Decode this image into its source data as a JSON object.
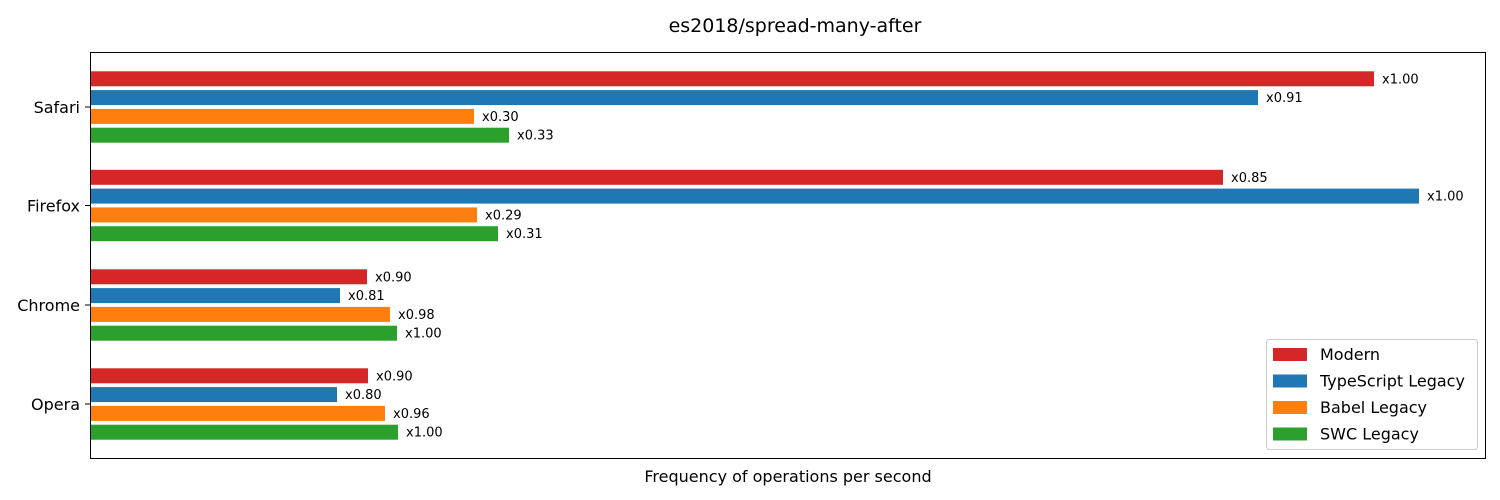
{
  "chart_data": {
    "type": "bar",
    "orientation": "horizontal",
    "title": "es2018/spread-many-after",
    "xlabel": "Frequency of operations per second",
    "ylabel": "",
    "categories": [
      "Safari",
      "Firefox",
      "Chrome",
      "Opera"
    ],
    "series": [
      {
        "name": "Modern",
        "color": "#d62728",
        "values": [
          1.0,
          0.85,
          0.9,
          0.9
        ],
        "labels": [
          "x1.00",
          "x0.85",
          "x0.90",
          "x0.90"
        ]
      },
      {
        "name": "TypeScript Legacy",
        "color": "#1f77b4",
        "values": [
          0.91,
          1.0,
          0.81,
          0.8
        ],
        "labels": [
          "x0.91",
          "x1.00",
          "x0.81",
          "x0.80"
        ]
      },
      {
        "name": "Babel Legacy",
        "color": "#ff7f0e",
        "values": [
          0.3,
          0.29,
          0.98,
          0.96
        ],
        "labels": [
          "x0.30",
          "x0.29",
          "x0.98",
          "x0.96"
        ]
      },
      {
        "name": "SWC Legacy",
        "color": "#2ca02c",
        "values": [
          0.33,
          0.31,
          1.0,
          1.0
        ],
        "labels": [
          "x0.33",
          "x0.31",
          "x1.00",
          "x1.00"
        ]
      }
    ],
    "bar_lengths": [
      [
        1283,
        1132,
        276,
        277
      ],
      [
        1167,
        1328,
        249,
        246
      ],
      [
        383,
        386,
        299,
        294
      ],
      [
        418,
        407,
        306,
        307
      ]
    ],
    "xticks": "none",
    "grid": false,
    "legend_position": "bottom-right"
  }
}
